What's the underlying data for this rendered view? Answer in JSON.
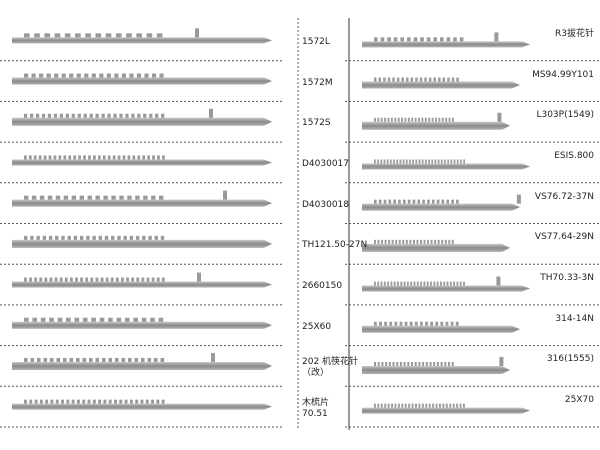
{
  "left": {
    "items": [
      {
        "label": [
          "1572L"
        ]
      },
      {
        "label": [
          "1572M"
        ]
      },
      {
        "label": [
          "1572S"
        ]
      },
      {
        "label": [
          "D4030017"
        ]
      },
      {
        "label": [
          "D4030018"
        ]
      },
      {
        "label": [
          "TH121.50-27N"
        ]
      },
      {
        "label": [
          "2660150"
        ]
      },
      {
        "label": [
          "25X60"
        ]
      },
      {
        "label": [
          "202 机筷花针",
          "（改）"
        ]
      },
      {
        "label": [
          "木梳片",
          "70.51"
        ]
      }
    ]
  },
  "right": {
    "items": [
      {
        "label": [
          "R3拔花针"
        ]
      },
      {
        "label": [
          "MS94.99Y101"
        ]
      },
      {
        "label": [
          "L303P(1549)"
        ]
      },
      {
        "label": [
          "ESIS.800"
        ]
      },
      {
        "label": [
          "VS76.72-37N"
        ]
      },
      {
        "label": [
          "VS77.64-29N"
        ]
      },
      {
        "label": [
          "TH70.33-3N"
        ]
      },
      {
        "label": [
          "314-14N"
        ]
      },
      {
        "label": [
          "316(1555)"
        ]
      },
      {
        "label": [
          "25X70"
        ]
      }
    ]
  }
}
